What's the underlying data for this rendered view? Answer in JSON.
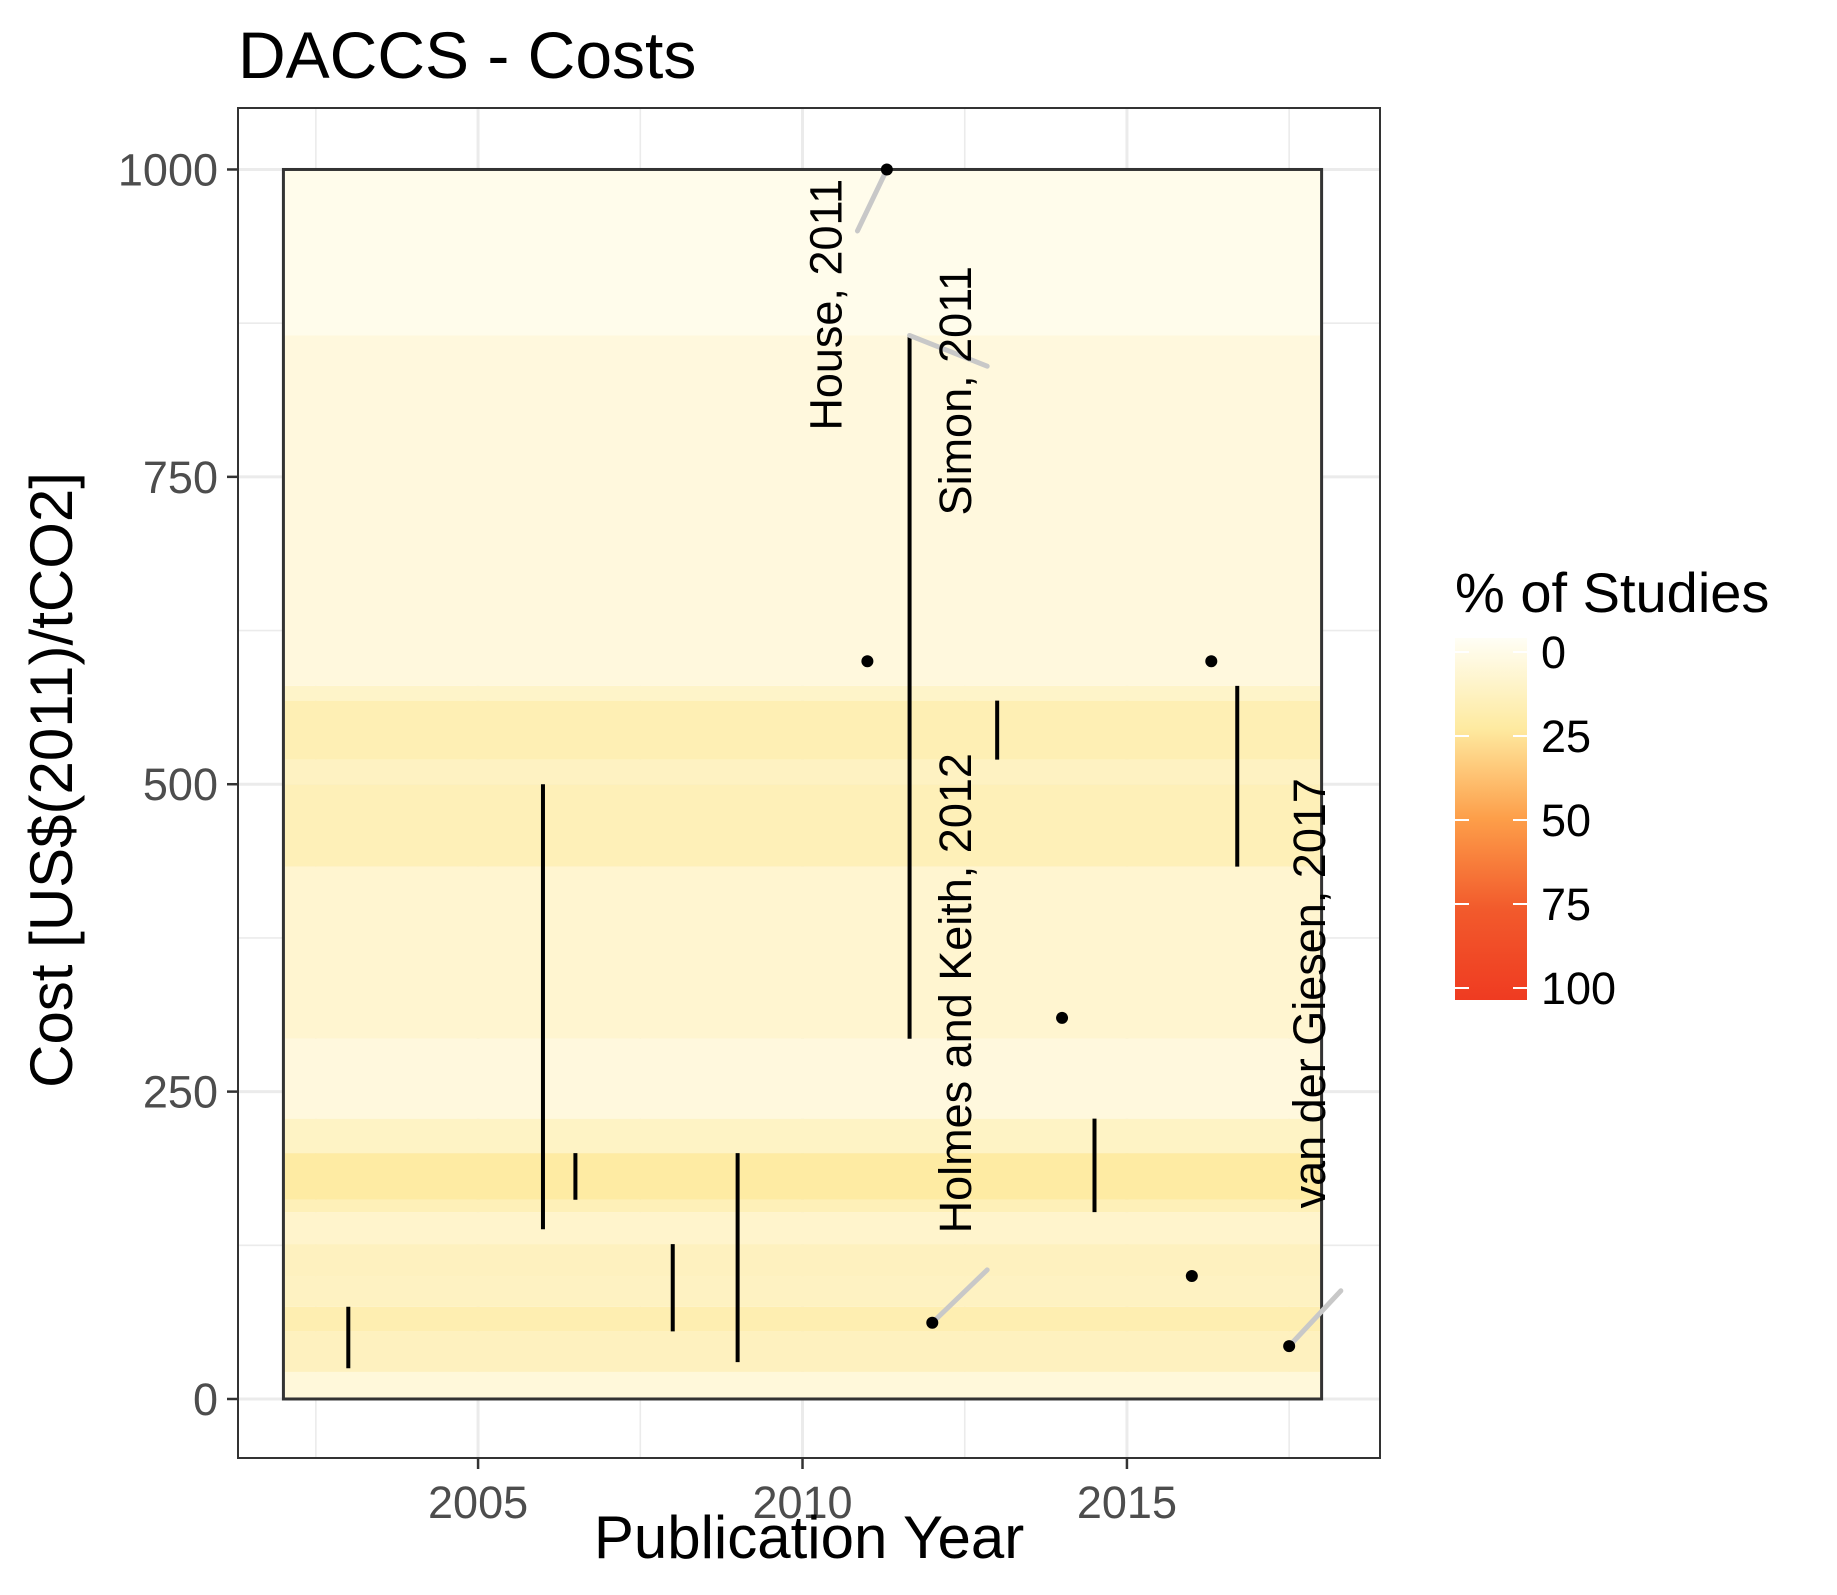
{
  "chart_data": {
    "type": "scatter",
    "title": "DACCS - Costs",
    "xlabel": "Publication Year",
    "ylabel": "Cost [US$(2011)/tCO2]",
    "xlim": [
      2001.3,
      2018.9
    ],
    "ylim": [
      -48,
      1050
    ],
    "grid": true,
    "x_ticks": [
      2005,
      2010,
      2015
    ],
    "y_ticks": [
      0,
      250,
      500,
      750,
      1000
    ],
    "study_extent": {
      "x": [
        2002,
        2018
      ],
      "y": [
        0,
        1000
      ]
    },
    "ranges": [
      {
        "x": 2003.0,
        "low": 25,
        "high": 75
      },
      {
        "x": 2006.0,
        "low": 138,
        "high": 500
      },
      {
        "x": 2006.5,
        "low": 162,
        "high": 200
      },
      {
        "x": 2008.0,
        "low": 55,
        "high": 126
      },
      {
        "x": 2009.0,
        "low": 30,
        "high": 200
      },
      {
        "x": 2011.65,
        "low": 293,
        "high": 865
      },
      {
        "x": 2013.0,
        "low": 520,
        "high": 568
      },
      {
        "x": 2014.5,
        "low": 152,
        "high": 228
      },
      {
        "x": 2016.7,
        "low": 433,
        "high": 580
      }
    ],
    "points": [
      {
        "x": 2011.3,
        "y": 1000
      },
      {
        "x": 2011.0,
        "y": 600
      },
      {
        "x": 2016.3,
        "y": 600
      },
      {
        "x": 2014.0,
        "y": 310
      },
      {
        "x": 2016.0,
        "y": 100
      },
      {
        "x": 2012.0,
        "y": 62
      },
      {
        "x": 2017.5,
        "y": 43
      }
    ],
    "annotations": [
      {
        "label": "House, 2011",
        "x": 2011.3,
        "y": 1000,
        "text_x": 2010.6,
        "text_y": 890,
        "anchor_y": 950
      },
      {
        "label": "Simon, 2011",
        "x": 2011.65,
        "y": 865,
        "text_x": 2012.6,
        "text_y": 820,
        "anchor_y": 840
      },
      {
        "label": "Holmes and Keith, 2012",
        "x": 2012.0,
        "y": 62,
        "text_x": 2012.6,
        "text_y": 330,
        "anchor_y": 105
      },
      {
        "label": "van der Giesen, 2017",
        "x": 2017.5,
        "y": 43,
        "text_x": 2018.05,
        "text_y": 330,
        "anchor_y": 88
      }
    ],
    "heatmap": {
      "scale": "% of Studies",
      "bands": [
        {
          "y0": 0,
          "y1": 22,
          "pct": 8
        },
        {
          "y0": 22,
          "y1": 55,
          "pct": 16
        },
        {
          "y0": 55,
          "y1": 75,
          "pct": 20
        },
        {
          "y0": 75,
          "y1": 100,
          "pct": 15
        },
        {
          "y0": 100,
          "y1": 126,
          "pct": 16
        },
        {
          "y0": 126,
          "y1": 152,
          "pct": 12
        },
        {
          "y0": 152,
          "y1": 162,
          "pct": 18
        },
        {
          "y0": 162,
          "y1": 200,
          "pct": 24
        },
        {
          "y0": 200,
          "y1": 228,
          "pct": 14
        },
        {
          "y0": 228,
          "y1": 293,
          "pct": 7
        },
        {
          "y0": 293,
          "y1": 433,
          "pct": 11
        },
        {
          "y0": 433,
          "y1": 500,
          "pct": 18
        },
        {
          "y0": 500,
          "y1": 520,
          "pct": 15
        },
        {
          "y0": 520,
          "y1": 568,
          "pct": 19
        },
        {
          "y0": 568,
          "y1": 580,
          "pct": 13
        },
        {
          "y0": 580,
          "y1": 865,
          "pct": 7
        },
        {
          "y0": 865,
          "y1": 1000,
          "pct": 3
        }
      ]
    },
    "legend": {
      "title": "% of Studies",
      "labels": [
        "0",
        "25",
        "50",
        "75",
        "100"
      ],
      "colors": [
        "#fffef5",
        "#feeaa0",
        "#fd9e49",
        "#f25a2c",
        "#ef3b21"
      ],
      "position": "right"
    },
    "colors": {
      "range_line": "#000000",
      "point": "#000000",
      "leader_line": "#c8c8c8",
      "grid": "#ebebeb",
      "panel_border": "#333333"
    }
  }
}
